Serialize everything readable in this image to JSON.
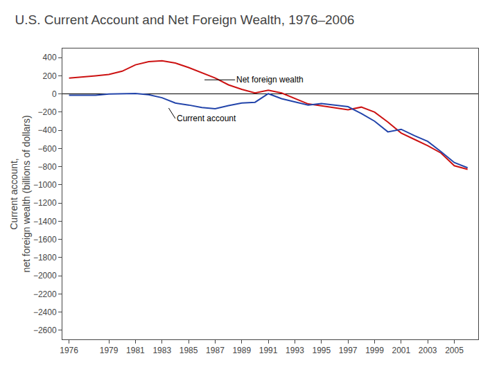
{
  "chart_data": {
    "type": "line",
    "title": "U.S. Current Account and Net Foreign Wealth, 1976–2006",
    "ylabel": "Current account,\nnet foreign wealth (billions of dollars)",
    "x": [
      1976,
      1977,
      1978,
      1979,
      1980,
      1981,
      1982,
      1983,
      1984,
      1985,
      1986,
      1987,
      1988,
      1989,
      1990,
      1991,
      1992,
      1993,
      1994,
      1995,
      1996,
      1997,
      1998,
      1999,
      2000,
      2001,
      2002,
      2003,
      2004,
      2005,
      2006
    ],
    "series": [
      {
        "name": "Net foreign wealth",
        "color": "#cc1111",
        "values": [
          175,
          185,
          200,
          215,
          250,
          320,
          355,
          365,
          340,
          290,
          230,
          175,
          100,
          50,
          10,
          40,
          10,
          -50,
          -110,
          -130,
          -155,
          -175,
          -145,
          -200,
          -310,
          -430,
          -500,
          -570,
          -650,
          -790,
          -830
        ]
      },
      {
        "name": "Current account",
        "color": "#2244aa",
        "values": [
          -15,
          -15,
          -14,
          -1,
          1,
          4,
          -8,
          -42,
          -100,
          -122,
          -150,
          -163,
          -128,
          -100,
          -92,
          3,
          -52,
          -85,
          -122,
          -105,
          -125,
          -140,
          -215,
          -300,
          -417,
          -389,
          -459,
          -522,
          -635,
          -755,
          -812
        ]
      }
    ],
    "xlim": [
      1975.5,
      2006.8
    ],
    "xticks": [
      1976,
      1979,
      1981,
      1983,
      1985,
      1987,
      1989,
      1991,
      1993,
      1995,
      1997,
      1999,
      2001,
      2003,
      2005
    ],
    "ylim": [
      -2700,
      500
    ],
    "yticks": [
      400,
      200,
      0,
      {
        "value": -200,
        "label": "−200"
      },
      {
        "value": -400,
        "label": "−400"
      },
      {
        "value": -600,
        "label": "−600"
      },
      {
        "value": -800,
        "label": "−800"
      },
      {
        "value": -1000,
        "label": "−1000"
      },
      {
        "value": -1200,
        "label": "−1200"
      },
      {
        "value": -1400,
        "label": "−1400"
      },
      {
        "value": -1600,
        "label": "−1600"
      },
      {
        "value": -1800,
        "label": "−1800"
      },
      {
        "value": -2000,
        "label": "−2000"
      },
      {
        "value": -2200,
        "label": "−2200"
      },
      {
        "value": -2400,
        "label": "−2400"
      },
      {
        "value": -2600,
        "label": "−2600"
      }
    ],
    "annotations": [
      {
        "text": "Net foreign wealth",
        "x": 1986.2,
        "y": 155,
        "text_x": 1988.5,
        "text_y": 155
      },
      {
        "text": "Current account",
        "x": 1983.5,
        "y": -155,
        "text_x": 1984.0,
        "text_y": -270
      }
    ],
    "grid": false
  }
}
